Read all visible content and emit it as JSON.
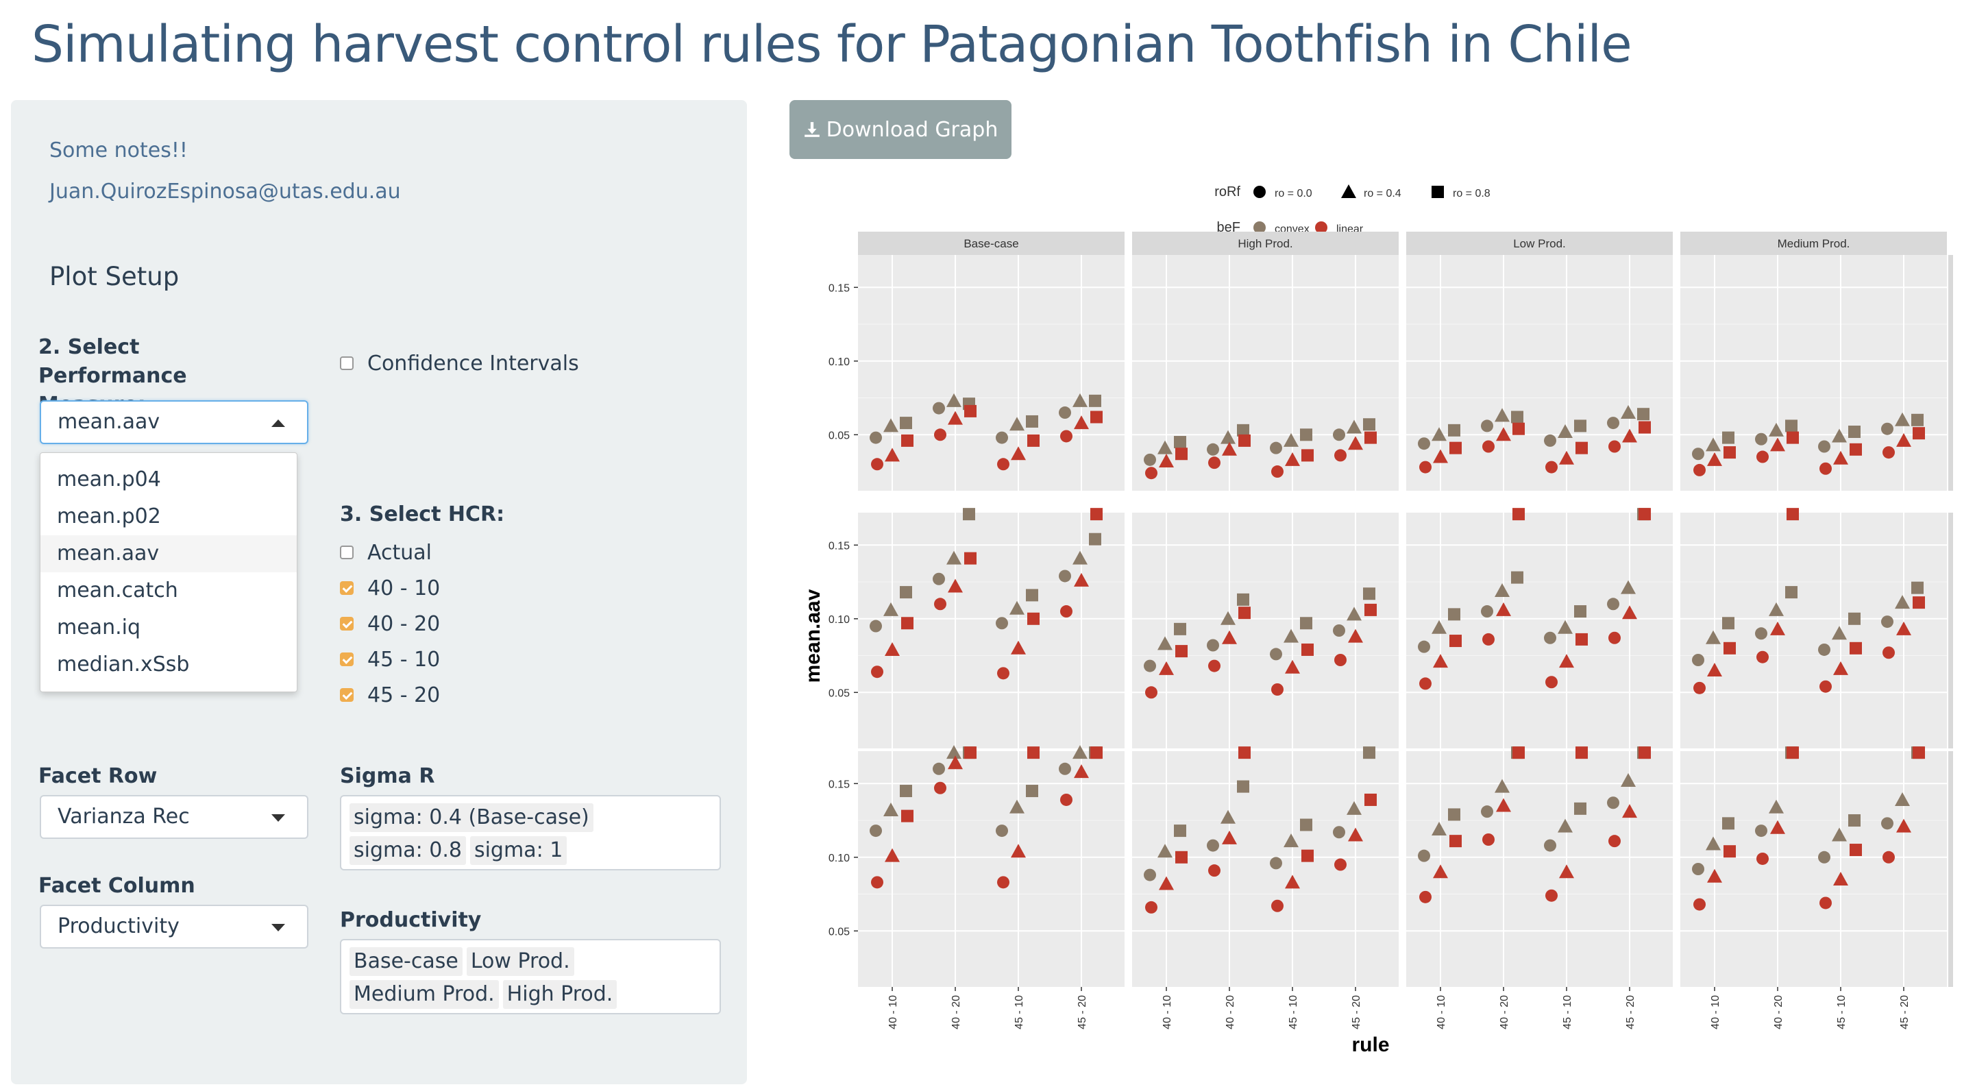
{
  "page": {
    "title": "Simulating harvest control rules for Patagonian Toothfish in Chile"
  },
  "sidebar": {
    "notes_link": "Some notes!!",
    "email": "Juan.QuirozEspinosa@utas.edu.au",
    "section_title": "Plot Setup",
    "performance_measure": {
      "label": "2. Select Performance Measure:",
      "selected": "mean.aav",
      "options": [
        "mean.p04",
        "mean.p02",
        "mean.aav",
        "mean.catch",
        "mean.iq",
        "median.xSsb"
      ]
    },
    "confidence_intervals": {
      "label": "Confidence Intervals",
      "checked": false
    },
    "hcr": {
      "label": "3. Select HCR:",
      "options": [
        {
          "label": "Actual",
          "checked": false
        },
        {
          "label": "40 - 10",
          "checked": true
        },
        {
          "label": "40 - 20",
          "checked": true
        },
        {
          "label": "45 - 10",
          "checked": true
        },
        {
          "label": "45 - 20",
          "checked": true
        }
      ]
    },
    "facet_row": {
      "label": "Facet Row",
      "selected": "Varianza Rec"
    },
    "facet_column": {
      "label": "Facet Column",
      "selected": "Productivity"
    },
    "sigma_r": {
      "label": "Sigma R",
      "chips": [
        "sigma: 0.4 (Base-case)",
        "sigma: 0.8",
        "sigma: 1"
      ]
    },
    "productivity": {
      "label": "Productivity",
      "chips": [
        "Base-case",
        "Low Prod.",
        "Medium Prod.",
        "High Prod."
      ]
    }
  },
  "toolbar": {
    "download_label": "Download Graph",
    "download_icon": "download-icon"
  },
  "chart_data": {
    "type": "scatter",
    "xlabel": "rule",
    "ylabel": "mean.aav",
    "x_categories": [
      "40 - 10",
      "40 - 20",
      "45 - 10",
      "45 - 20"
    ],
    "y_ticks": [
      0.05,
      0.1,
      0.15
    ],
    "ylim": [
      0.012,
      0.172
    ],
    "columns": [
      "Base-case",
      "High Prod.",
      "Low Prod.",
      "Medium Prod."
    ],
    "rows": [
      "sigma: 0.4 (Base-case)",
      "sigma: 0.8",
      "sigma: 1"
    ],
    "legend": {
      "placement": "top",
      "shape_title": "roRf",
      "shape_items": [
        {
          "label": "ro = 0.0",
          "shape": "circle"
        },
        {
          "label": "ro = 0.4",
          "shape": "triangle"
        },
        {
          "label": "ro = 0.8",
          "shape": "square"
        }
      ],
      "color_title": "beF",
      "color_items": [
        {
          "label": "convex",
          "color": "#8b7b68"
        },
        {
          "label": "linear",
          "color": "#c0392b"
        }
      ]
    },
    "panels": [
      {
        "row": 0,
        "col": 0,
        "convex": [
          [
            0.048,
            0.056,
            0.058
          ],
          [
            0.068,
            0.073,
            0.071
          ],
          [
            0.048,
            0.057,
            0.059
          ],
          [
            0.065,
            0.073,
            0.073
          ]
        ],
        "linear": [
          [
            0.03,
            0.036,
            0.046
          ],
          [
            0.05,
            0.061,
            0.066
          ],
          [
            0.03,
            0.037,
            0.046
          ],
          [
            0.049,
            0.058,
            0.062
          ]
        ]
      },
      {
        "row": 0,
        "col": 1,
        "convex": [
          [
            0.033,
            0.041,
            0.045
          ],
          [
            0.04,
            0.048,
            0.053
          ],
          [
            0.041,
            0.046,
            0.05
          ],
          [
            0.05,
            0.055,
            0.057
          ]
        ],
        "linear": [
          [
            0.024,
            0.032,
            0.037
          ],
          [
            0.031,
            0.04,
            0.046
          ],
          [
            0.025,
            0.033,
            0.036
          ],
          [
            0.036,
            0.044,
            0.048
          ]
        ]
      },
      {
        "row": 0,
        "col": 2,
        "convex": [
          [
            0.044,
            0.05,
            0.053
          ],
          [
            0.056,
            0.063,
            0.062
          ],
          [
            0.046,
            0.052,
            0.056
          ],
          [
            0.058,
            0.065,
            0.064
          ]
        ],
        "linear": [
          [
            0.028,
            0.035,
            0.041
          ],
          [
            0.042,
            0.05,
            0.054
          ],
          [
            0.028,
            0.034,
            0.041
          ],
          [
            0.042,
            0.049,
            0.055
          ]
        ]
      },
      {
        "row": 0,
        "col": 3,
        "convex": [
          [
            0.037,
            0.043,
            0.048
          ],
          [
            0.047,
            0.053,
            0.056
          ],
          [
            0.042,
            0.049,
            0.052
          ],
          [
            0.054,
            0.06,
            0.06
          ]
        ],
        "linear": [
          [
            0.026,
            0.033,
            0.038
          ],
          [
            0.035,
            0.043,
            0.048
          ],
          [
            0.027,
            0.034,
            0.04
          ],
          [
            0.038,
            0.046,
            0.051
          ]
        ]
      },
      {
        "row": 1,
        "col": 0,
        "convex": [
          [
            0.095,
            0.106,
            0.118
          ],
          [
            0.127,
            0.141,
            0.172
          ],
          [
            0.097,
            0.107,
            0.116
          ],
          [
            0.129,
            0.141,
            0.154
          ]
        ],
        "linear": [
          [
            0.064,
            0.079,
            0.097
          ],
          [
            0.11,
            0.122,
            0.141
          ],
          [
            0.063,
            0.08,
            0.1
          ],
          [
            0.105,
            0.126,
            0.172
          ]
        ]
      },
      {
        "row": 1,
        "col": 1,
        "convex": [
          [
            0.068,
            0.083,
            0.093
          ],
          [
            0.082,
            0.1,
            0.113
          ],
          [
            0.076,
            0.088,
            0.097
          ],
          [
            0.092,
            0.103,
            0.117
          ]
        ],
        "linear": [
          [
            0.05,
            0.066,
            0.078
          ],
          [
            0.068,
            0.087,
            0.104
          ],
          [
            0.052,
            0.067,
            0.079
          ],
          [
            0.072,
            0.088,
            0.106
          ]
        ]
      },
      {
        "row": 1,
        "col": 2,
        "convex": [
          [
            0.081,
            0.094,
            0.103
          ],
          [
            0.105,
            0.119,
            0.128
          ],
          [
            0.087,
            0.094,
            0.105
          ],
          [
            0.11,
            0.121,
            0.172
          ]
        ],
        "linear": [
          [
            0.056,
            0.071,
            0.085
          ],
          [
            0.086,
            0.106,
            0.172
          ],
          [
            0.057,
            0.071,
            0.086
          ],
          [
            0.087,
            0.104,
            0.172
          ]
        ]
      },
      {
        "row": 1,
        "col": 3,
        "convex": [
          [
            0.072,
            0.087,
            0.097
          ],
          [
            0.09,
            0.106,
            0.118
          ],
          [
            0.079,
            0.09,
            0.1
          ],
          [
            0.098,
            0.111,
            0.121
          ]
        ],
        "linear": [
          [
            0.053,
            0.065,
            0.08
          ],
          [
            0.074,
            0.093,
            0.172
          ],
          [
            0.054,
            0.066,
            0.08
          ],
          [
            0.077,
            0.093,
            0.111
          ]
        ]
      },
      {
        "row": 2,
        "col": 0,
        "convex": [
          [
            0.118,
            0.132,
            0.145
          ],
          [
            0.16,
            0.178,
            0.178
          ],
          [
            0.118,
            0.134,
            0.145
          ],
          [
            0.16,
            0.178,
            0.178
          ]
        ],
        "linear": [
          [
            0.083,
            0.101,
            0.128
          ],
          [
            0.147,
            0.164,
            0.178
          ],
          [
            0.083,
            0.104,
            0.178
          ],
          [
            0.139,
            0.158,
            0.178
          ]
        ]
      },
      {
        "row": 2,
        "col": 1,
        "convex": [
          [
            0.088,
            0.104,
            0.118
          ],
          [
            0.108,
            0.127,
            0.148
          ],
          [
            0.096,
            0.111,
            0.122
          ],
          [
            0.117,
            0.133,
            0.178
          ]
        ],
        "linear": [
          [
            0.066,
            0.082,
            0.1
          ],
          [
            0.091,
            0.113,
            0.178
          ],
          [
            0.067,
            0.083,
            0.101
          ],
          [
            0.095,
            0.115,
            0.139
          ]
        ]
      },
      {
        "row": 2,
        "col": 2,
        "convex": [
          [
            0.101,
            0.119,
            0.129
          ],
          [
            0.131,
            0.148,
            0.178
          ],
          [
            0.108,
            0.121,
            0.133
          ],
          [
            0.137,
            0.152,
            0.178
          ]
        ],
        "linear": [
          [
            0.073,
            0.09,
            0.111
          ],
          [
            0.112,
            0.135,
            0.178
          ],
          [
            0.074,
            0.09,
            0.178
          ],
          [
            0.111,
            0.131,
            0.178
          ]
        ]
      },
      {
        "row": 2,
        "col": 3,
        "convex": [
          [
            0.092,
            0.109,
            0.123
          ],
          [
            0.118,
            0.134,
            0.178
          ],
          [
            0.1,
            0.115,
            0.125
          ],
          [
            0.123,
            0.139,
            0.178
          ]
        ],
        "linear": [
          [
            0.068,
            0.087,
            0.104
          ],
          [
            0.099,
            0.12,
            0.178
          ],
          [
            0.069,
            0.085,
            0.105
          ],
          [
            0.1,
            0.121,
            0.178
          ]
        ]
      }
    ]
  }
}
